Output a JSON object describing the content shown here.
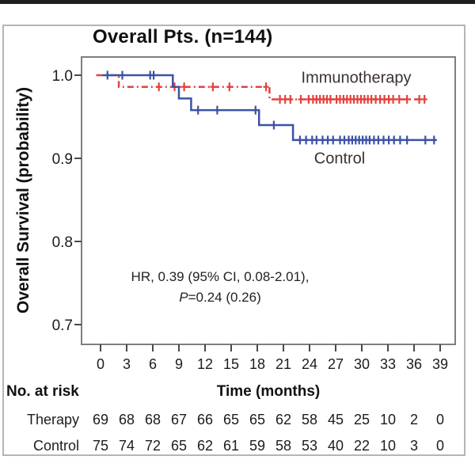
{
  "figure": {
    "title": "Overall Pts. (n=144)",
    "y_axis_label": "Overall Survival (probability)",
    "annotation": {
      "line1": "HR, 0.39 (95% CI, 0.08-2.01),",
      "line2_italic": "P",
      "line2_rest": "=0.24 (0.26)"
    }
  },
  "legend": {
    "immunotherapy": "Immunotherapy",
    "control": "Control"
  },
  "chart_data": {
    "type": "line",
    "subtype": "kaplan_meier_step",
    "title": "Overall Pts. (n=144)",
    "xlabel": "Time (months)",
    "ylabel": "Overall Survival (probability)",
    "x_ticks": [
      0,
      3,
      6,
      9,
      12,
      15,
      18,
      21,
      24,
      27,
      30,
      33,
      36,
      39
    ],
    "xlim": [
      0,
      39
    ],
    "ylim": [
      0.68,
      1.01
    ],
    "y_ticks": [
      {
        "v": 1.0,
        "label": "1.0"
      },
      {
        "v": 0.9,
        "label": "0.9"
      },
      {
        "v": 0.8,
        "label": "0.8"
      },
      {
        "v": 0.7,
        "label": "0.7"
      }
    ],
    "grid": false,
    "frame_color": "#7f7f7f",
    "axis_color": "#4a4a4a",
    "annotation_text": "HR, 0.39 (95% CI, 0.08-2.01), P=0.24 (0.26)",
    "series": [
      {
        "id": "immunotherapy",
        "name": "Immunotherapy",
        "color": "#e2423e",
        "dash": "8 4 2 4",
        "steps": [
          [
            -0.5,
            1.0
          ],
          [
            2.1,
            1.0
          ],
          [
            2.1,
            0.986
          ],
          [
            19.4,
            0.986
          ],
          [
            19.4,
            0.971
          ],
          [
            37.4,
            0.971
          ]
        ],
        "censors": [
          [
            6.7,
            0.986
          ],
          [
            8.5,
            0.986
          ],
          [
            9.6,
            0.986
          ],
          [
            12.9,
            0.986
          ],
          [
            14.8,
            0.986
          ],
          [
            19.0,
            0.986
          ],
          [
            20.6,
            0.971
          ],
          [
            21.2,
            0.971
          ],
          [
            21.8,
            0.971
          ],
          [
            23.0,
            0.971
          ],
          [
            23.9,
            0.971
          ],
          [
            24.4,
            0.971
          ],
          [
            24.8,
            0.971
          ],
          [
            25.2,
            0.971
          ],
          [
            25.6,
            0.971
          ],
          [
            26.0,
            0.971
          ],
          [
            26.4,
            0.971
          ],
          [
            27.1,
            0.971
          ],
          [
            27.5,
            0.971
          ],
          [
            27.9,
            0.971
          ],
          [
            28.3,
            0.971
          ],
          [
            28.7,
            0.971
          ],
          [
            29.1,
            0.971
          ],
          [
            29.5,
            0.971
          ],
          [
            29.9,
            0.971
          ],
          [
            30.3,
            0.971
          ],
          [
            30.7,
            0.971
          ],
          [
            31.1,
            0.971
          ],
          [
            31.6,
            0.971
          ],
          [
            32.1,
            0.971
          ],
          [
            32.6,
            0.971
          ],
          [
            33.1,
            0.971
          ],
          [
            33.6,
            0.971
          ],
          [
            34.3,
            0.971
          ],
          [
            35.2,
            0.971
          ],
          [
            36.6,
            0.971
          ],
          [
            37.2,
            0.971
          ]
        ]
      },
      {
        "id": "control",
        "name": "Control",
        "color": "#3c52a5",
        "dash": "",
        "steps": [
          [
            0.2,
            1.0
          ],
          [
            8.3,
            1.0
          ],
          [
            8.3,
            0.986
          ],
          [
            9.0,
            0.986
          ],
          [
            9.0,
            0.972
          ],
          [
            10.4,
            0.972
          ],
          [
            10.4,
            0.958
          ],
          [
            18.2,
            0.958
          ],
          [
            18.2,
            0.94
          ],
          [
            22.1,
            0.94
          ],
          [
            22.1,
            0.922
          ],
          [
            38.6,
            0.922
          ]
        ],
        "censors": [
          [
            0.8,
            1.0
          ],
          [
            2.5,
            1.0
          ],
          [
            5.7,
            1.0
          ],
          [
            6.1,
            1.0
          ],
          [
            11.2,
            0.958
          ],
          [
            13.4,
            0.958
          ],
          [
            17.8,
            0.958
          ],
          [
            19.9,
            0.94
          ],
          [
            22.9,
            0.922
          ],
          [
            23.6,
            0.922
          ],
          [
            24.3,
            0.922
          ],
          [
            24.8,
            0.922
          ],
          [
            25.5,
            0.922
          ],
          [
            26.1,
            0.922
          ],
          [
            26.7,
            0.922
          ],
          [
            27.5,
            0.922
          ],
          [
            28.0,
            0.922
          ],
          [
            28.5,
            0.922
          ],
          [
            28.9,
            0.922
          ],
          [
            29.3,
            0.922
          ],
          [
            29.7,
            0.922
          ],
          [
            30.1,
            0.922
          ],
          [
            30.5,
            0.922
          ],
          [
            30.9,
            0.922
          ],
          [
            31.4,
            0.922
          ],
          [
            31.9,
            0.922
          ],
          [
            32.5,
            0.922
          ],
          [
            33.1,
            0.922
          ],
          [
            33.7,
            0.922
          ],
          [
            34.4,
            0.922
          ],
          [
            35.2,
            0.922
          ],
          [
            37.3,
            0.922
          ],
          [
            38.3,
            0.922
          ]
        ]
      }
    ]
  },
  "risk_table": {
    "header": "No. at risk",
    "rows": [
      {
        "label": "Therapy",
        "values": [
          69,
          68,
          68,
          67,
          66,
          65,
          65,
          62,
          58,
          45,
          25,
          10,
          2,
          0
        ]
      },
      {
        "label": "Control",
        "values": [
          75,
          74,
          72,
          65,
          62,
          61,
          59,
          58,
          53,
          40,
          22,
          10,
          3,
          0
        ]
      }
    ]
  }
}
